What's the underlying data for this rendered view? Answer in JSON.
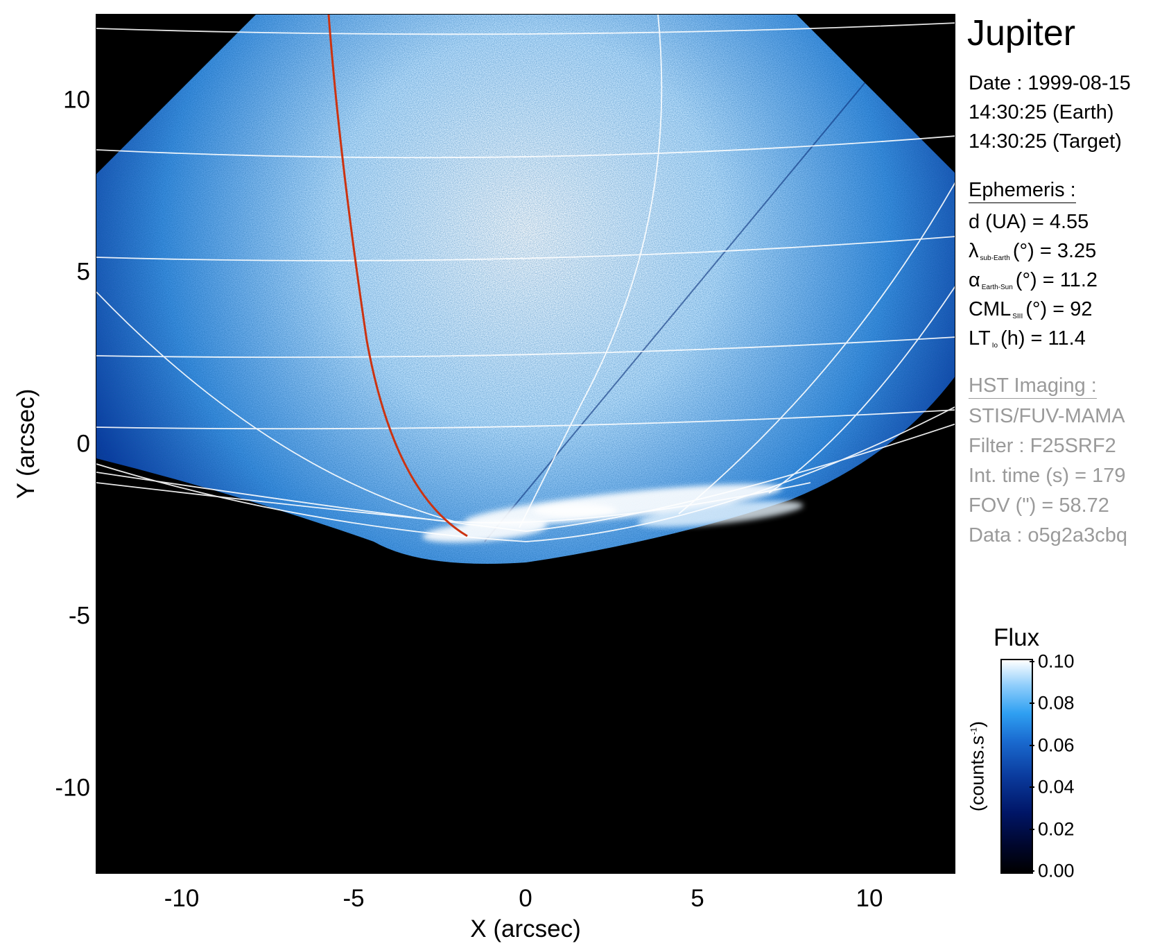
{
  "plot": {
    "x_axis_title": "X (arcsec)",
    "y_axis_title": "Y (arcsec)",
    "x_ticks": [
      "-10",
      "-5",
      "0",
      "5",
      "10"
    ],
    "y_ticks": [
      "10",
      "5",
      "0",
      "-5",
      "-10"
    ],
    "x_range": [
      -12.5,
      12.5
    ],
    "y_range": [
      -12.5,
      12.5
    ],
    "footprint_line_color": "#cc3311",
    "grid_line_color": "#ffffff"
  },
  "info": {
    "target": "Jupiter",
    "date_label": "Date : 1999-08-15",
    "time_earth": "14:30:25 (Earth)",
    "time_target": "14:30:25 (Target)",
    "ephemeris_heading": "Ephemeris :",
    "distance": "d (UA)    = 4.55",
    "lambda_symbol": "λ",
    "lambda_sub": "sub-Earth",
    "lambda_rest": "(°) = 3.25",
    "alpha_symbol": "α",
    "alpha_sub": "Earth-Sun",
    "alpha_rest": "(°) = 11.2",
    "cml_symbol": "CML",
    "cml_sub": "SIII",
    "cml_rest": "(°) = 92",
    "lt_symbol": "LT",
    "lt_sub": "Io",
    "lt_rest": "(h) = 11.4",
    "imaging_heading": "HST Imaging :",
    "instrument": "STIS/FUV-MAMA",
    "filter": "Filter : F25SRF2",
    "int_time": "Int. time (s) = 179",
    "fov": "FOV (\") = 58.72",
    "data_id": "Data : o5g2a3cbq",
    "gray_text_color": "#9a9a9a"
  },
  "colorbar": {
    "title": "Flux",
    "unit_text": "(counts.s",
    "unit_sup": "-1",
    "unit_close": ")",
    "ticks": [
      "0.10",
      "0.08",
      "0.06",
      "0.04",
      "0.02",
      "0.00"
    ]
  }
}
